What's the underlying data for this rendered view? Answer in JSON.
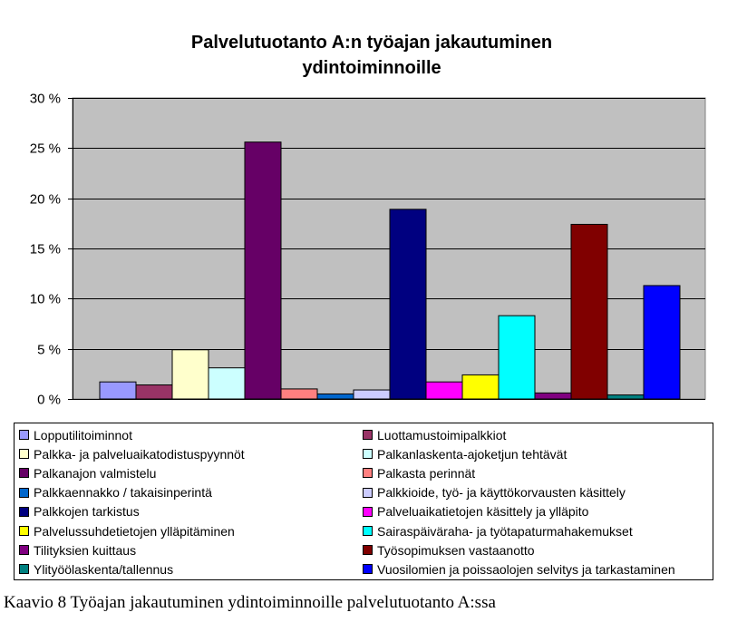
{
  "chart_data": {
    "type": "bar",
    "title_line1": "Palvelutuotanto A:n työajan jakautuminen",
    "title_line2": "ydintoiminnoille",
    "xlabel": "",
    "ylabel": "",
    "ylim": [
      0,
      30
    ],
    "y_ticks": [
      0,
      5,
      10,
      15,
      20,
      25,
      30
    ],
    "y_tick_labels": [
      "0 %",
      "5 %",
      "10 %",
      "15 %",
      "20 %",
      "25 %",
      "30 %"
    ],
    "grid": true,
    "legend_position": "bottom",
    "plot_background": "#c0c0c0",
    "series": [
      {
        "name": "Lopputilitoiminnot",
        "value": 1.7,
        "color": "#9999ff"
      },
      {
        "name": "Luottamustoimipalkkiot",
        "value": 1.4,
        "color": "#993366"
      },
      {
        "name": "Palkka- ja palveluaikatodistuspyynnöt",
        "value": 4.9,
        "color": "#ffffcc"
      },
      {
        "name": "Palkanlaskenta-ajoketjun tehtävät",
        "value": 3.1,
        "color": "#ccffff"
      },
      {
        "name": "Palkanajon valmistelu",
        "value": 25.6,
        "color": "#660066"
      },
      {
        "name": "Palkasta perinnät",
        "value": 1.0,
        "color": "#ff8080"
      },
      {
        "name": "Palkkaennakko / takaisinperintä",
        "value": 0.5,
        "color": "#0066cc"
      },
      {
        "name": "Palkkioide, työ- ja käyttökorvausten käsittely",
        "value": 0.9,
        "color": "#ccccff"
      },
      {
        "name": "Palkkojen tarkistus",
        "value": 18.9,
        "color": "#000080"
      },
      {
        "name": "Palveluaikatietojen käsittely ja ylläpito",
        "value": 1.7,
        "color": "#ff00ff"
      },
      {
        "name": "Palvelussuhdetietojen ylläpitäminen",
        "value": 2.4,
        "color": "#ffff00"
      },
      {
        "name": "Sairaspäiväraha- ja työtapaturmahakemukset",
        "value": 8.3,
        "color": "#00ffff"
      },
      {
        "name": "Tilityksien kuittaus",
        "value": 0.6,
        "color": "#800080"
      },
      {
        "name": "Työsopimuksen vastaanotto",
        "value": 17.4,
        "color": "#800000"
      },
      {
        "name": "Ylityöölaskenta/tallennus",
        "value": 0.4,
        "color": "#008080"
      },
      {
        "name": "Vuosilomien ja poissaolojen selvitys ja tarkastaminen",
        "value": 11.3,
        "color": "#0000ff"
      }
    ]
  },
  "caption": "Kaavio 8 Työajan jakautuminen ydintoiminnoille palvelutuotanto A:ssa"
}
